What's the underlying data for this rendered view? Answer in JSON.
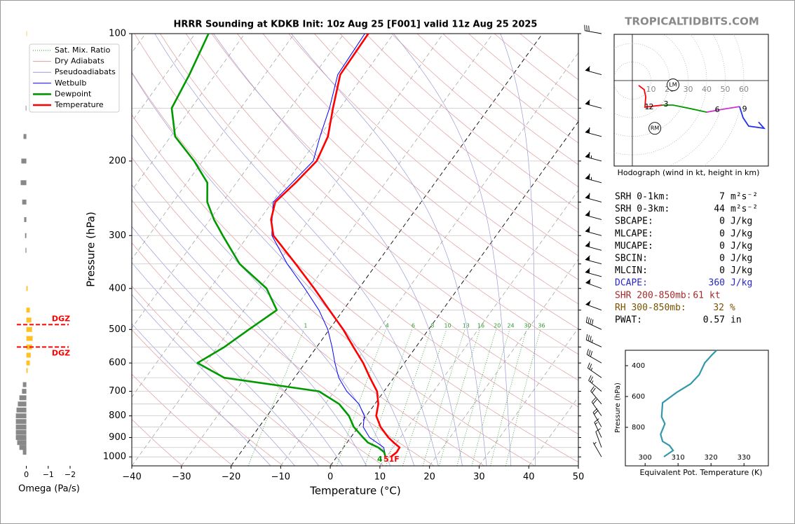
{
  "brand": "TROPICALTIDBITS.COM",
  "chart_data": [
    {
      "type": "skewt",
      "title": "HRRR Sounding at KDKB Init: 10z Aug 25 [F001] valid 11z Aug 25 2025",
      "xlabel": "Temperature (°C)",
      "ylabel": "Pressure (hPa)",
      "xlim": [
        -40,
        50
      ],
      "ylim": [
        1050,
        100
      ],
      "xticks": [
        {
          "value": -40,
          "label": "−40"
        },
        {
          "value": -30,
          "label": "−30"
        },
        {
          "value": -20,
          "label": "−20"
        },
        {
          "value": -10,
          "label": "−10"
        },
        0,
        10,
        20,
        30,
        40,
        50
      ],
      "yticks": [
        100,
        200,
        300,
        400,
        500,
        600,
        700,
        800,
        900,
        1000
      ],
      "yminor": [
        150,
        250,
        350,
        450,
        550,
        650,
        750,
        850,
        950
      ],
      "grid": true,
      "reference_lines": [
        {
          "name": "Sat. Mix. Ratio",
          "color": "#2e9a2e",
          "style": "dotted"
        },
        {
          "name": "Dry Adiabats",
          "color": "#e29a9a",
          "style": "solid"
        },
        {
          "name": "Pseudoadiabats",
          "color": "#9a9ad8",
          "style": "solid"
        }
      ],
      "mixing_ratios": [
        1,
        4,
        6,
        8,
        10,
        13,
        16,
        20,
        24,
        30,
        36
      ],
      "pressure": [
        1000,
        975,
        950,
        925,
        900,
        850,
        800,
        750,
        700,
        650,
        600,
        550,
        500,
        450,
        400,
        350,
        300,
        275,
        250,
        225,
        200,
        175,
        150,
        125,
        100
      ],
      "series": [
        {
          "name": "Wetbulb",
          "color": "#0000ff",
          "values": [
            9.9,
            9.0,
            8.1,
            6.0,
            3.8,
            1.0,
            -0.4,
            -3.2,
            -7.5,
            -11.1,
            -14.0,
            -16.9,
            -20.3,
            -24.9,
            -30.9,
            -38.0,
            -45.2,
            -47.5,
            -49.8,
            -48.8,
            -47.7,
            -49.9,
            -52.1,
            -55.3,
            -55.8
          ]
        },
        {
          "name": "Dewpoint",
          "color": "#009a00",
          "values": [
            9.8,
            8.9,
            7.0,
            4.2,
            2.5,
            -0.9,
            -3.5,
            -7.2,
            -13.1,
            -34.2,
            -41.7,
            -38.6,
            -36.2,
            -33.4,
            -38.6,
            -47.6,
            -55.1,
            -59.2,
            -63.1,
            -65.9,
            -71.7,
            -79.1,
            -83.9,
            -85.2,
            -87.3
          ]
        },
        {
          "name": "Temperature",
          "color": "#ff0000",
          "values": [
            10.9,
            11.4,
            11.3,
            9.4,
            7.6,
            4.5,
            2.0,
            0.7,
            -1.4,
            -4.8,
            -8.3,
            -12.6,
            -17.2,
            -22.8,
            -29.0,
            -36.3,
            -44.9,
            -47.7,
            -49.4,
            -48.1,
            -47.0,
            -48.3,
            -51.4,
            -54.8,
            -55.1
          ]
        }
      ],
      "surface_labels": [
        {
          "text": "4",
          "color": "#009a00"
        },
        {
          "text": "51F",
          "color": "#ff0000"
        }
      ],
      "winds": {
        "pressure": [
          100,
          125,
          150,
          175,
          200,
          225,
          250,
          275,
          300,
          325,
          350,
          375,
          400,
          450,
          500,
          550,
          600,
          650,
          700,
          750,
          800,
          850,
          900,
          950,
          1000
        ],
        "speed": [
          30,
          55,
          55,
          60,
          65,
          65,
          60,
          60,
          60,
          60,
          55,
          55,
          55,
          50,
          40,
          35,
          30,
          25,
          25,
          20,
          20,
          20,
          15,
          10,
          5
        ],
        "direction": [
          280,
          285,
          285,
          285,
          285,
          285,
          285,
          285,
          285,
          285,
          285,
          285,
          290,
          290,
          295,
          295,
          300,
          305,
          310,
          320,
          325,
          330,
          335,
          340,
          330
        ]
      }
    },
    {
      "type": "hodograph",
      "title": "Hodograph (wind in kt, height in km)",
      "xlim": [
        -9.8,
        73.2
      ],
      "ylim": [
        -46,
        24.9
      ],
      "rings": [
        10,
        20,
        30,
        40,
        50,
        60
      ],
      "series": [
        {
          "color": "#ff0000",
          "u": [
            3.4,
            6.4,
            7.2,
            6.8,
            16.2
          ],
          "v": [
            -2.6,
            -4.9,
            -8.7,
            -14.3,
            -13.2
          ]
        },
        {
          "color": "#009a00",
          "u": [
            16.2,
            21.9,
            31.3,
            40
          ],
          "v": [
            -13.2,
            -13.2,
            -15.1,
            -17
          ]
        },
        {
          "color": "#cc33cc",
          "u": [
            40,
            48.3,
            57.7
          ],
          "v": [
            -17,
            -15.5,
            -14
          ]
        },
        {
          "color": "#2233ee",
          "u": [
            57.7,
            59.6,
            62.6,
            70.9,
            67.9
          ],
          "v": [
            -14,
            -20,
            -24.5,
            -25.7,
            -22.3
          ]
        }
      ],
      "height_labels": [
        {
          "label": "1",
          "u": 7.9,
          "v": -14.3
        },
        {
          "label": "2",
          "u": 10.2,
          "v": -14.3
        },
        {
          "label": "3",
          "u": 18.1,
          "v": -12.8
        },
        {
          "label": "6",
          "u": 45.7,
          "v": -15.8
        },
        {
          "label": "9",
          "u": 60.4,
          "v": -15.5
        }
      ],
      "storm_motion": [
        {
          "label": "LM",
          "u": 21.9,
          "v": -2.3
        },
        {
          "label": "RM",
          "u": 12.1,
          "v": -25.7
        }
      ]
    },
    {
      "type": "stats",
      "rows": [
        {
          "label": "SRH 0-1km:",
          "value": 7,
          "unit": "m²s⁻²",
          "color": "#000000"
        },
        {
          "label": "SRH 0-3km:",
          "value": 44,
          "unit": "m²s⁻²",
          "color": "#000000"
        },
        {
          "label": "SBCAPE:",
          "value": 0,
          "unit": "J/kg",
          "color": "#000000"
        },
        {
          "label": "MLCAPE:",
          "value": 0,
          "unit": "J/kg",
          "color": "#000000"
        },
        {
          "label": "MUCAPE:",
          "value": 0,
          "unit": "J/kg",
          "color": "#000000"
        },
        {
          "label": "SBCIN:",
          "value": 0,
          "unit": "J/kg",
          "color": "#000000"
        },
        {
          "label": "MLCIN:",
          "value": 0,
          "unit": "J/kg",
          "color": "#000000"
        },
        {
          "label": "DCAPE:",
          "value": 360,
          "unit": "J/kg",
          "color": "#2727c8"
        },
        {
          "label": "SHR 200-850mb:",
          "value": 61,
          "unit": "kt",
          "color": "#a52a2a"
        },
        {
          "label": "RH 300-850mb:",
          "value": 32,
          "unit": "%",
          "color": "#7a5200"
        },
        {
          "label": "PWAT:",
          "value": 0.57,
          "unit": "in",
          "color": "#000000"
        }
      ]
    },
    {
      "type": "line",
      "xlabel": "Equivalent Pot. Temperature (K)",
      "ylabel": "Pressure (hPa)",
      "xlim": [
        294,
        337.4
      ],
      "ylim": [
        1050,
        300
      ],
      "xticks": [
        300,
        310,
        320,
        330
      ],
      "yticks": [
        400,
        600,
        800
      ],
      "color": "#3399aa",
      "pressure": [
        991,
        950,
        918,
        891,
        845,
        777,
        732,
        641,
        573,
        518,
        459,
        382,
        332,
        300
      ],
      "values": [
        305.7,
        308.5,
        307.4,
        305.3,
        304.7,
        306,
        305,
        305.3,
        309.6,
        313.8,
        316.4,
        318.1,
        320.2,
        321.7
      ]
    },
    {
      "type": "omega",
      "xlabel": "Omega (Pa/s)",
      "xlim": [
        0.5,
        -2
      ],
      "xticks": [
        0,
        {
          "value": -1,
          "label": "−1"
        },
        {
          "value": -2,
          "label": "−2"
        }
      ],
      "colors": {
        "positive": "#888888",
        "negative": "#ffc125"
      },
      "pressure": [
        100,
        150,
        175,
        200,
        225,
        250,
        275,
        300,
        325,
        400,
        450,
        475,
        500,
        525,
        550,
        575,
        600,
        625,
        675,
        700,
        725,
        750,
        775,
        800,
        825,
        850,
        875,
        900,
        925,
        950,
        975
      ],
      "values": [
        -0.01,
        0.03,
        0.13,
        0.23,
        0.26,
        0.19,
        0.1,
        0.06,
        0.04,
        -0.06,
        -0.16,
        -0.23,
        -0.26,
        -0.29,
        -0.26,
        -0.2,
        -0.16,
        -0.06,
        0.16,
        0.2,
        0.32,
        0.39,
        0.45,
        0.48,
        0.48,
        0.48,
        0.48,
        0.48,
        0.42,
        0.32,
        0.16
      ],
      "dgz": [
        {
          "label": "DGZ",
          "pressure": 487
        },
        {
          "label": "DGZ",
          "pressure": 550
        }
      ]
    }
  ]
}
